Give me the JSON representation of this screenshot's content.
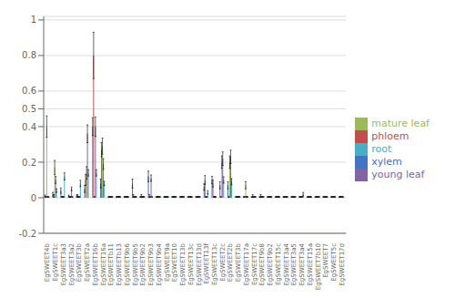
{
  "chart_data": {
    "type": "bar",
    "categories": [
      "EgSWEET4b",
      "EgSWEET1c",
      "EgSWEET3a3",
      "EgSWEET3a2",
      "EgSWEET3b",
      "EgSWEET2a",
      "EgSWEET16b",
      "EgSWEET16a",
      "EgSWEETb11",
      "EgSWEETb13",
      "EgSWEET9b6",
      "EgSWEET9b5",
      "EgSWEET9b2",
      "EgSWEET9b3",
      "EgSWEET9b4",
      "EgSWEET9a",
      "EgSWEET10",
      "EgSWEET13b",
      "EgSWEET13c",
      "EgSWEET13d",
      "EgSWEET13f",
      "EgSWEET13c",
      "EgSWEET2c",
      "EgSWEET2b",
      "EgSWEET3b",
      "EgSWEET17a",
      "EgSWEET17c",
      "EgSWEET9b8",
      "EgSWEET9b2",
      "EgSWEET15c",
      "EgSWEET3a4",
      "EgSWEET3a5",
      "EgSWEET3a4",
      "EgSWEET15a",
      "EgSWEET7b10",
      "EgSWEET7",
      "EgSWEET5c",
      "EgSWEET17d"
    ],
    "series": [
      {
        "name": "xylem",
        "color": "#4472c4",
        "values": [
          0.01,
          0.02,
          0.04,
          0.01,
          0.01,
          0.05,
          0.4,
          0.08,
          0.005,
          0.005,
          0.005,
          0.08,
          0.005,
          0.12,
          0.005,
          0.005,
          0.005,
          0.005,
          0.005,
          0.005,
          0.06,
          0.1,
          0.07,
          0.07,
          0.005,
          0.005,
          0.005,
          0.005,
          0.005,
          0.005,
          0.005,
          0.005,
          0.005,
          0.005,
          0.005,
          0.005,
          0.005,
          0.005
        ],
        "errors": [
          0.005,
          0.01,
          0.015,
          0.005,
          0.005,
          0.02,
          0.05,
          0.025,
          0.002,
          0.002,
          0.002,
          0.025,
          0.002,
          0.03,
          0.002,
          0.002,
          0.002,
          0.002,
          0.002,
          0.002,
          0.018,
          0.02,
          0.02,
          0.02,
          0.002,
          0.002,
          0.002,
          0.002,
          0.002,
          0.002,
          0.002,
          0.002,
          0.002,
          0.002,
          0.002,
          0.002,
          0.002,
          0.002
        ]
      },
      {
        "name": "phloem",
        "color": "#c0504d",
        "values": [
          0.005,
          0.01,
          0.005,
          0.005,
          0.01,
          0.1,
          0.8,
          0.27,
          0.005,
          0.005,
          0.005,
          0.01,
          0.01,
          0.01,
          0.005,
          0.005,
          0.005,
          0.005,
          0.005,
          0.005,
          0.1,
          0.08,
          0.005,
          0.005,
          0.005,
          0.005,
          0.01,
          0.01,
          0.005,
          0.005,
          0.005,
          0.005,
          0.005,
          0.005,
          0.005,
          0.005,
          0.005,
          0.005
        ],
        "errors": [
          0.002,
          0.008,
          0.002,
          0.002,
          0.008,
          0.03,
          0.13,
          0.04,
          0.002,
          0.002,
          0.002,
          0.008,
          0.008,
          0.008,
          0.002,
          0.002,
          0.002,
          0.002,
          0.002,
          0.002,
          0.025,
          0.02,
          0.002,
          0.002,
          0.002,
          0.002,
          0.008,
          0.008,
          0.002,
          0.002,
          0.002,
          0.002,
          0.002,
          0.002,
          0.002,
          0.002,
          0.002,
          0.002
        ]
      },
      {
        "name": "mature leaf",
        "color": "#9bbb59",
        "values": [
          0.4,
          0.17,
          0.005,
          0.005,
          0.005,
          0.14,
          0.005,
          0.29,
          0.005,
          0.005,
          0.005,
          0.005,
          0.005,
          0.005,
          0.005,
          0.005,
          0.005,
          0.005,
          0.005,
          0.005,
          0.005,
          0.005,
          0.2,
          0.2,
          0.005,
          0.07,
          0.005,
          0.005,
          0.005,
          0.005,
          0.005,
          0.005,
          0.005,
          0.005,
          0.005,
          0.005,
          0.005,
          0.005
        ],
        "errors": [
          0.06,
          0.04,
          0.002,
          0.002,
          0.002,
          0.035,
          0.002,
          0.045,
          0.002,
          0.002,
          0.002,
          0.002,
          0.002,
          0.002,
          0.002,
          0.002,
          0.002,
          0.002,
          0.002,
          0.002,
          0.002,
          0.002,
          0.035,
          0.035,
          0.002,
          0.02,
          0.002,
          0.002,
          0.002,
          0.002,
          0.002,
          0.002,
          0.002,
          0.002,
          0.002,
          0.002,
          0.002,
          0.002
        ]
      },
      {
        "name": "young leaf",
        "color": "#8064a2",
        "values": [
          0.005,
          0.1,
          0.005,
          0.05,
          0.005,
          0.36,
          0.4,
          0.19,
          0.005,
          0.005,
          0.005,
          0.005,
          0.005,
          0.11,
          0.005,
          0.005,
          0.005,
          0.005,
          0.005,
          0.005,
          0.005,
          0.005,
          0.22,
          0.23,
          0.005,
          0.005,
          0.005,
          0.005,
          0.005,
          0.005,
          0.005,
          0.005,
          0.005,
          0.005,
          0.005,
          0.005,
          0.005,
          0.005
        ],
        "errors": [
          0.002,
          0.02,
          0.002,
          0.01,
          0.002,
          0.05,
          0.055,
          0.03,
          0.002,
          0.002,
          0.002,
          0.002,
          0.002,
          0.018,
          0.002,
          0.002,
          0.002,
          0.002,
          0.002,
          0.002,
          0.002,
          0.002,
          0.038,
          0.038,
          0.002,
          0.002,
          0.002,
          0.002,
          0.002,
          0.002,
          0.002,
          0.002,
          0.002,
          0.002,
          0.002,
          0.002,
          0.002,
          0.002
        ]
      },
      {
        "name": "root",
        "color": "#4bacc6",
        "values": [
          0.005,
          0.04,
          0.12,
          0.005,
          0.08,
          0.14,
          0.14,
          0.08,
          0.005,
          0.005,
          0.005,
          0.005,
          0.005,
          0.005,
          0.005,
          0.005,
          0.005,
          0.005,
          0.005,
          0.005,
          0.03,
          0.005,
          0.1,
          0.09,
          0.005,
          0.005,
          0.005,
          0.005,
          0.005,
          0.005,
          0.005,
          0.005,
          0.02,
          0.005,
          0.005,
          0.005,
          0.005,
          0.005
        ],
        "errors": [
          0.002,
          0.01,
          0.02,
          0.002,
          0.018,
          0.018,
          0.018,
          0.012,
          0.002,
          0.002,
          0.002,
          0.002,
          0.002,
          0.002,
          0.002,
          0.002,
          0.002,
          0.002,
          0.002,
          0.002,
          0.01,
          0.002,
          0.018,
          0.018,
          0.002,
          0.002,
          0.002,
          0.002,
          0.002,
          0.002,
          0.002,
          0.002,
          0.01,
          0.002,
          0.002,
          0.002,
          0.002,
          0.002
        ]
      }
    ],
    "ylim": [
      -0.2,
      1.02
    ],
    "yticks": [
      -0.2,
      0,
      0.2,
      0.4,
      0.5,
      0.6,
      0.8,
      1
    ],
    "grid": true,
    "legend": "right"
  }
}
